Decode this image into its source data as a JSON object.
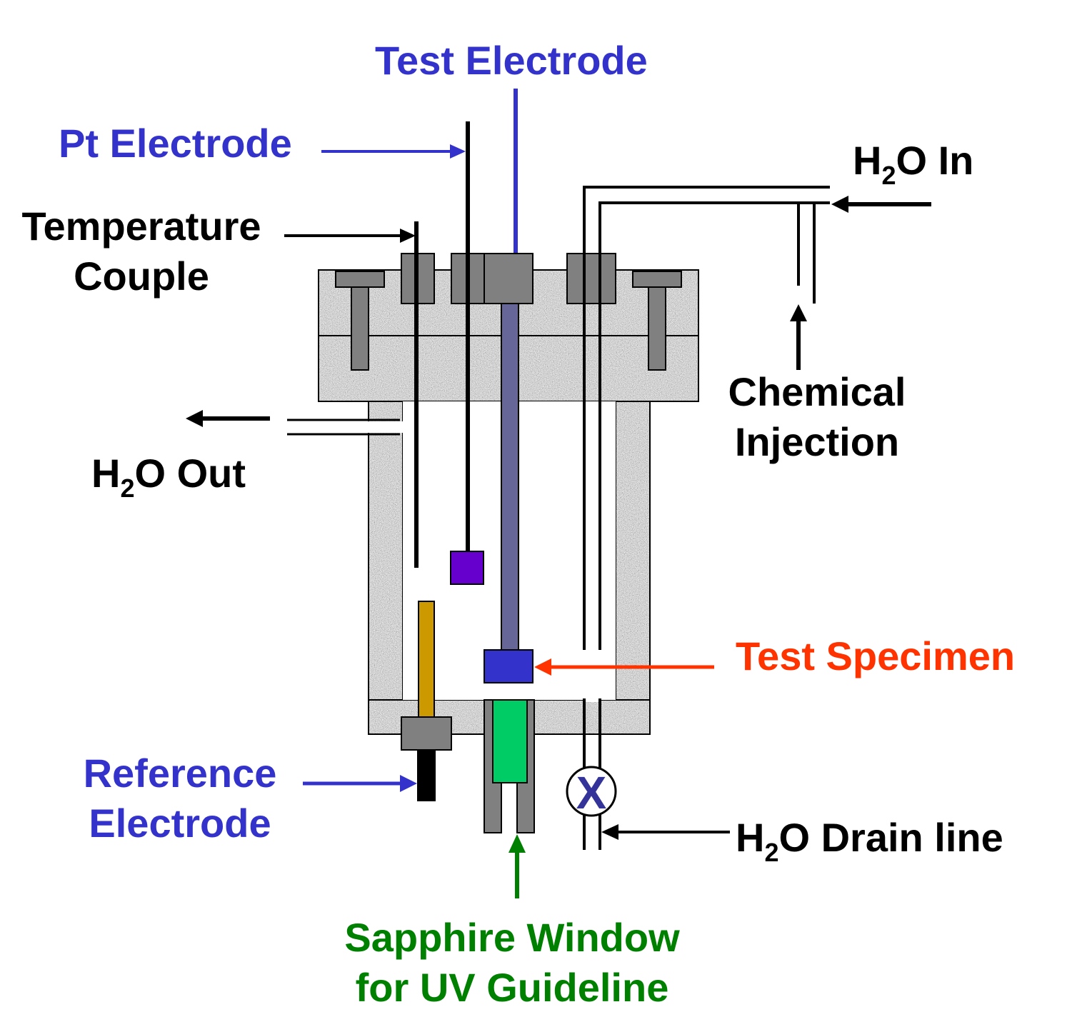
{
  "colors": {
    "blue_label": "#3333cc",
    "black_label": "#000000",
    "red_label": "#ff3300",
    "green_label": "#008000",
    "granite": "#a6a6a6",
    "fitting": "#808080",
    "test_electrode_rod": "#666699",
    "test_specimen": "#3333cc",
    "pt_electrode_tip": "#6600cc",
    "reference_rod": "#cc9900",
    "sapphire_window": "#00cc66"
  },
  "labels": {
    "test_electrode": "Test Electrode",
    "pt_electrode": "Pt Electrode",
    "temperature_couple_line1": "Temperature",
    "temperature_couple_line2": "Couple",
    "h2o_in_h": "H",
    "h2o_in_sub": "2",
    "h2o_in_rest": "O In",
    "h2o_out_h": "H",
    "h2o_out_sub": "2",
    "h2o_out_rest": "O Out",
    "chemical_injection_line1": "Chemical",
    "chemical_injection_line2": "Injection",
    "test_specimen": "Test Specimen",
    "reference_electrode_line1": "Reference",
    "reference_electrode_line2": "Electrode",
    "drain_h": "H",
    "drain_sub": "2",
    "drain_rest": "O Drain line",
    "valve_mark": "X",
    "sapphire_line1": "Sapphire Window",
    "sapphire_line2": "for UV Guideline"
  }
}
